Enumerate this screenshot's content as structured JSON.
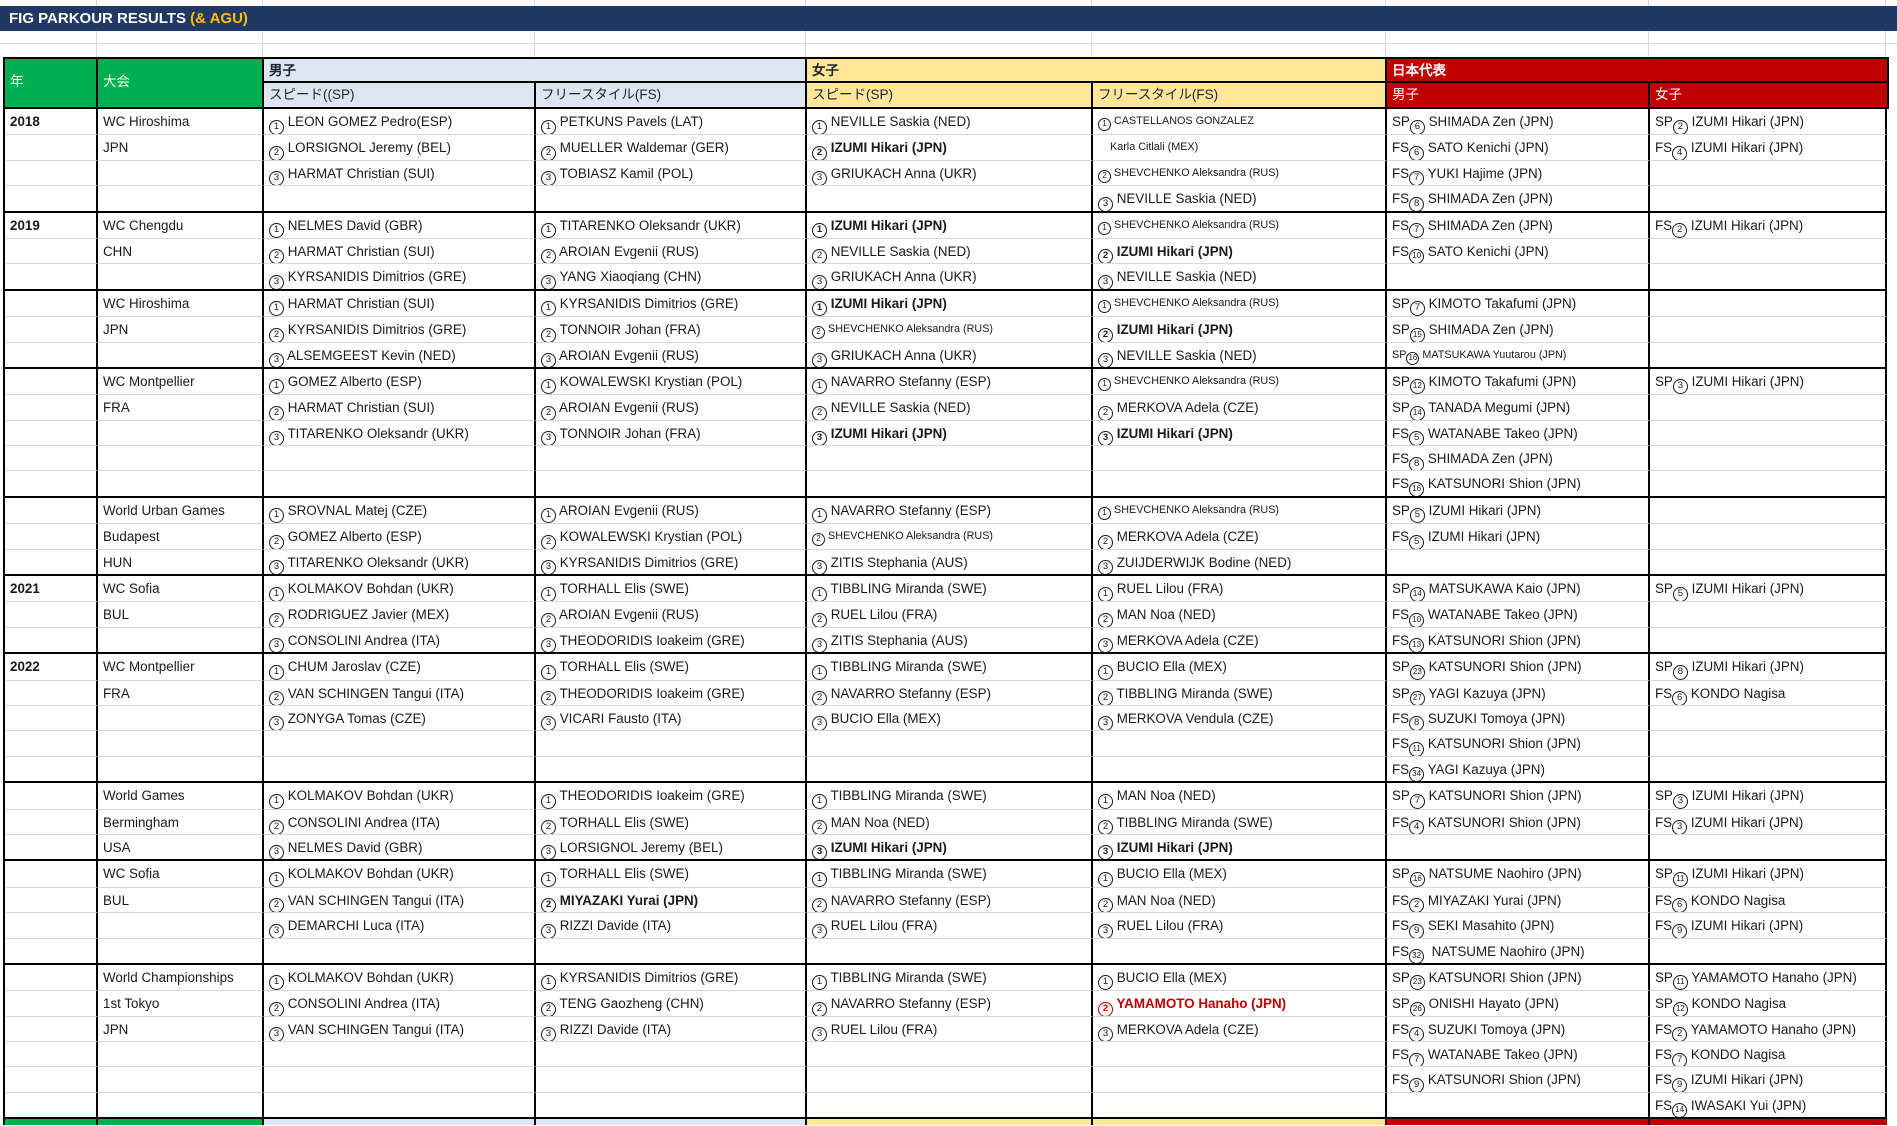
{
  "title": {
    "main": "FIG PARKOUR RESULTS ",
    "accent": "(& AGU)"
  },
  "colors": {
    "title_navy": "#1F3864",
    "accent_gold": "#FFC000",
    "header_green": "#00B050",
    "header_blue": "#DCE6F1",
    "header_yellow": "#FFE699",
    "header_red": "#C00000",
    "medal_red": "#C00000"
  },
  "table": {
    "headers": {
      "year": "年",
      "event": "大会",
      "men": "男子",
      "women": "女子",
      "japan": "日本代表",
      "men_sp": "スピード((SP)",
      "men_fs": "フリースタイル(FS)",
      "women_sp": "スピード(SP)",
      "women_fs": "フリースタイル(FS)",
      "japan_men": "男子",
      "japan_women": "女子"
    },
    "sections": [
      {
        "year": "2018",
        "rows": [
          [
            "WC Hiroshima",
            "① LEON GOMEZ Pedro(ESP)",
            "① PETKUNS Pavels (LAT)",
            "① NEVILLE Saskia (NED)",
            {
              "t": "① CASTELLANOS GONZALEZ",
              "s": 1
            },
            "SP⑥ SHIMADA Zen (JPN)",
            "SP② IZUMI Hikari (JPN)"
          ],
          [
            "JPN",
            "② LORSIGNOL Jeremy (BEL)",
            "② MUELLER Waldemar (GER)",
            {
              "t": "② IZUMI Hikari (JPN)",
              "b": 1
            },
            {
              "t": "    Karla Citlali (MEX)",
              "s": 1
            },
            "FS⑥ SATO Kenichi (JPN)",
            "FS④ IZUMI Hikari (JPN)"
          ],
          [
            "",
            "③ HARMAT Christian (SUI)",
            "③ TOBIASZ Kamil (POL)",
            "③ GRIUKACH Anna (UKR)",
            {
              "t": "② SHEVCHENKO Aleksandra (RUS)",
              "s": 1
            },
            "FS⑦ YUKI Hajime (JPN)",
            ""
          ],
          [
            "",
            "",
            "",
            "",
            "③ NEVILLE Saskia (NED)",
            "FS⑧ SHIMADA Zen (JPN)",
            ""
          ]
        ]
      },
      {
        "year": "2019",
        "rows": [
          [
            "WC Chengdu",
            "① NELMES David (GBR)",
            "① TITARENKO Oleksandr (UKR)",
            {
              "t": "① IZUMI Hikari (JPN)",
              "b": 1
            },
            {
              "t": "① SHEVCHENKO Aleksandra (RUS)",
              "s": 1
            },
            "FS⑦ SHIMADA Zen (JPN)",
            "FS② IZUMI Hikari (JPN)"
          ],
          [
            "CHN",
            "② HARMAT Christian (SUI)",
            "② AROIAN Evgenii (RUS)",
            "② NEVILLE Saskia (NED)",
            {
              "t": "② IZUMI Hikari (JPN)",
              "b": 1
            },
            "FS⑩ SATO Kenichi (JPN)",
            ""
          ],
          [
            "",
            "③ KYRSANIDIS Dimitrios (GRE)",
            "③ YANG Xiaoqiang (CHN)",
            "③ GRIUKACH Anna (UKR)",
            "③ NEVILLE Saskia (NED)",
            "",
            ""
          ]
        ]
      },
      {
        "year": "",
        "rows": [
          [
            "WC Hiroshima",
            "① HARMAT Christian (SUI)",
            "① KYRSANIDIS Dimitrios (GRE)",
            {
              "t": "① IZUMI Hikari (JPN)",
              "b": 1
            },
            {
              "t": "① SHEVCHENKO Aleksandra (RUS)",
              "s": 1
            },
            "SP⑦ KIMOTO Takafumi (JPN)",
            ""
          ],
          [
            "JPN",
            "② KYRSANIDIS Dimitrios (GRE)",
            "② TONNOIR Johan (FRA)",
            {
              "t": "② SHEVCHENKO Aleksandra (RUS)",
              "s": 1
            },
            {
              "t": "② IZUMI Hikari (JPN)",
              "b": 1
            },
            "SP⑮ SHIMADA Zen (JPN)",
            ""
          ],
          [
            "",
            "③ ALSEMGEEST Kevin (NED)",
            "③ AROIAN Evgenii (RUS)",
            "③ GRIUKACH Anna (UKR)",
            "③ NEVILLE Saskia (NED)",
            {
              "t": "SP⑯ MATSUKAWA Yuutarou (JPN)",
              "s": 1
            },
            ""
          ]
        ]
      },
      {
        "year": "",
        "rows": [
          [
            "WC Montpellier",
            "① GOMEZ Alberto (ESP)",
            "① KOWALEWSKI Krystian (POL)",
            "① NAVARRO Stefanny (ESP)",
            {
              "t": "① SHEVCHENKO Aleksandra (RUS)",
              "s": 1
            },
            "SP⑫ KIMOTO Takafumi (JPN)",
            "SP③ IZUMI Hikari (JPN)"
          ],
          [
            "FRA",
            "② HARMAT Christian (SUI)",
            "② AROIAN Evgenii (RUS)",
            "② NEVILLE Saskia (NED)",
            "② MERKOVA Adela (CZE)",
            "SP⑭ TANADA Megumi (JPN)",
            ""
          ],
          [
            "",
            "③ TITARENKO Oleksandr (UKR)",
            "③ TONNOIR Johan (FRA)",
            {
              "t": "③ IZUMI Hikari (JPN)",
              "b": 1
            },
            {
              "t": "③ IZUMI Hikari (JPN)",
              "b": 1
            },
            "FS⑤ WATANABE Takeo (JPN)",
            ""
          ],
          [
            "",
            "",
            "",
            "",
            "",
            "FS⑧ SHIMADA Zen (JPN)",
            ""
          ],
          [
            "",
            "",
            "",
            "",
            "",
            "FS⑯ KATSUNORI Shion (JPN)",
            ""
          ]
        ]
      },
      {
        "year": "",
        "rows": [
          [
            "World Urban Games",
            "① SROVNAL Matej (CZE)",
            "① AROIAN Evgenii (RUS)",
            "① NAVARRO Stefanny (ESP)",
            {
              "t": "① SHEVCHENKO Aleksandra (RUS)",
              "s": 1
            },
            "SP⑤ IZUMI Hikari (JPN)",
            ""
          ],
          [
            "Budapest",
            "② GOMEZ Alberto (ESP)",
            "② KOWALEWSKI Krystian (POL)",
            {
              "t": "② SHEVCHENKO Aleksandra (RUS)",
              "s": 1
            },
            "② MERKOVA Adela (CZE)",
            "FS⑤ IZUMI Hikari (JPN)",
            ""
          ],
          [
            "HUN",
            "③ TITARENKO Oleksandr (UKR)",
            "③ KYRSANIDIS Dimitrios (GRE)",
            "③ ZITIS Stephania (AUS)",
            "③ ZUIJDERWIJK Bodine (NED)",
            "",
            ""
          ]
        ]
      },
      {
        "year": "2021",
        "rows": [
          [
            "WC Sofia",
            "① KOLMAKOV Bohdan (UKR)",
            "① TORHALL Elis (SWE)",
            "① TIBBLING Miranda (SWE)",
            "① RUEL Lilou (FRA)",
            "SP⑭ MATSUKAWA Kaio (JPN)",
            "SP⑤ IZUMI Hikari (JPN)"
          ],
          [
            "BUL",
            "② RODRIGUEZ Javier (MEX)",
            "② AROIAN Evgenii (RUS)",
            "② RUEL Lilou (FRA)",
            "② MAN Noa (NED)",
            "FS⑩ WATANABE Takeo (JPN)",
            ""
          ],
          [
            "",
            "③ CONSOLINI Andrea (ITA)",
            "③ THEODORIDIS Ioakeim (GRE)",
            "③ ZITIS Stephania (AUS)",
            "③ MERKOVA Adela (CZE)",
            "FS⑬ KATSUNORI Shion (JPN)",
            ""
          ]
        ]
      },
      {
        "year": "2022",
        "rows": [
          [
            "WC Montpellier",
            "① CHUM Jaroslav (CZE)",
            "① TORHALL Elis (SWE)",
            "① TIBBLING Miranda (SWE)",
            "① BUCIO Ella (MEX)",
            "SP㉓ KATSUNORI Shion (JPN)",
            "SP⑧ IZUMI Hikari (JPN)"
          ],
          [
            "FRA",
            "② VAN SCHINGEN Tangui (ITA)",
            "② THEODORIDIS Ioakeim (GRE)",
            "② NAVARRO Stefanny (ESP)",
            "② TIBBLING Miranda (SWE)",
            "SP㉗ YAGI Kazuya (JPN)",
            "FS⑥ KONDO Nagisa"
          ],
          [
            "",
            "③ ZONYGA Tomas (CZE)",
            "③ VICARI Fausto (ITA)",
            "③ BUCIO Ella (MEX)",
            "③ MERKOVA Vendula (CZE)",
            "FS⑧ SUZUKI Tomoya (JPN)",
            ""
          ],
          [
            "",
            "",
            "",
            "",
            "",
            "FS⑪ KATSUNORI Shion (JPN)",
            ""
          ],
          [
            "",
            "",
            "",
            "",
            "",
            "FS㉞ YAGI Kazuya (JPN)",
            ""
          ]
        ]
      },
      {
        "year": "",
        "rows": [
          [
            "World Games",
            "① KOLMAKOV Bohdan (UKR)",
            "① THEODORIDIS Ioakeim (GRE)",
            "① TIBBLING Miranda (SWE)",
            "① MAN Noa (NED)",
            "SP⑦ KATSUNORI Shion (JPN)",
            "SP③ IZUMI Hikari (JPN)"
          ],
          [
            "Bermingham",
            "② CONSOLINI Andrea (ITA)",
            "② TORHALL Elis (SWE)",
            "② MAN Noa (NED)",
            "② TIBBLING Miranda (SWE)",
            "FS④ KATSUNORI Shion (JPN)",
            "FS③ IZUMI Hikari (JPN)"
          ],
          [
            "USA",
            "③ NELMES David (GBR)",
            "③ LORSIGNOL Jeremy (BEL)",
            {
              "t": "③ IZUMI Hikari (JPN)",
              "b": 1
            },
            {
              "t": "③ IZUMI Hikari (JPN)",
              "b": 1
            },
            "",
            ""
          ]
        ]
      },
      {
        "year": "",
        "rows": [
          [
            "WC Sofia",
            "① KOLMAKOV Bohdan (UKR)",
            "① TORHALL Elis (SWE)",
            "① TIBBLING Miranda (SWE)",
            "① BUCIO Ella (MEX)",
            "SP⑯ NATSUME Naohiro (JPN)",
            "SP⑪ IZUMI Hikari (JPN)"
          ],
          [
            "BUL",
            "② VAN SCHINGEN Tangui (ITA)",
            {
              "t": "② MIYAZAKI Yurai (JPN)",
              "b": 1
            },
            "② NAVARRO Stefanny (ESP)",
            "② MAN Noa (NED)",
            "FS② MIYAZAKI Yurai (JPN)",
            "FS⑥ KONDO Nagisa"
          ],
          [
            "",
            "③ DEMARCHI Luca (ITA)",
            "③ RIZZI Davide (ITA)",
            "③ RUEL Lilou (FRA)",
            "③ RUEL Lilou (FRA)",
            "FS⑨ SEKI Masahito (JPN)",
            "FS⑨ IZUMI Hikari (JPN)"
          ],
          [
            "",
            "",
            "",
            "",
            "",
            "FS㉜  NATSUME Naohiro (JPN)",
            ""
          ]
        ]
      },
      {
        "year": "",
        "rows": [
          [
            "World Championships",
            "① KOLMAKOV Bohdan (UKR)",
            "① KYRSANIDIS Dimitrios (GRE)",
            "① TIBBLING Miranda (SWE)",
            "① BUCIO Ella (MEX)",
            "SP㉓ KATSUNORI Shion (JPN)",
            "SP⑪ YAMAMOTO Hanaho (JPN)"
          ],
          [
            "1st Tokyo",
            "② CONSOLINI Andrea (ITA)",
            "② TENG Gaozheng (CHN)",
            "② NAVARRO Stefanny (ESP)",
            {
              "t": "② YAMAMOTO Hanaho (JPN)",
              "b": 1,
              "r": 1
            },
            "SP㉖ ONISHI Hayato (JPN)",
            "SP⑫ KONDO Nagisa"
          ],
          [
            "JPN",
            "③ VAN SCHINGEN Tangui (ITA)",
            "③ RIZZI Davide (ITA)",
            "③ RUEL Lilou (FRA)",
            "③ MERKOVA Adela (CZE)",
            "FS④ SUZUKI Tomoya (JPN)",
            "FS② YAMAMOTO Hanaho (JPN)"
          ],
          [
            "",
            "",
            "",
            "",
            "",
            "FS⑦ WATANABE Takeo (JPN)",
            "FS⑦ KONDO Nagisa"
          ],
          [
            "",
            "",
            "",
            "",
            "",
            "FS⑨ KATSUNORI Shion (JPN)",
            "FS⑨ IZUMI Hikari (JPN)"
          ],
          [
            "",
            "",
            "",
            "",
            "",
            "",
            "FS⑭ IWASAKI Yui (JPN)"
          ]
        ]
      }
    ]
  }
}
